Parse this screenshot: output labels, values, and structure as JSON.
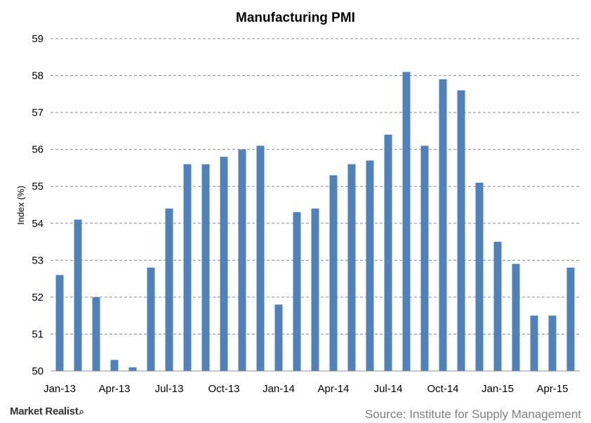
{
  "chart_data": {
    "type": "bar",
    "title": "Manufacturing  PMI",
    "ylabel": "Index (%)",
    "xlabel": "",
    "ylim": [
      50,
      59
    ],
    "yticks": [
      50,
      51,
      52,
      53,
      54,
      55,
      56,
      57,
      58,
      59
    ],
    "grid": true,
    "color": "#4F81BD",
    "categories": [
      "Jan-13",
      "Feb-13",
      "Mar-13",
      "Apr-13",
      "May-13",
      "Jun-13",
      "Jul-13",
      "Aug-13",
      "Sep-13",
      "Oct-13",
      "Nov-13",
      "Dec-13",
      "Jan-14",
      "Feb-14",
      "Mar-14",
      "Apr-14",
      "May-14",
      "Jun-14",
      "Jul-14",
      "Aug-14",
      "Sep-14",
      "Oct-14",
      "Nov-14",
      "Dec-14",
      "Jan-15",
      "Feb-15",
      "Mar-15",
      "Apr-15",
      "May-15"
    ],
    "values": [
      52.6,
      54.1,
      52.0,
      50.3,
      50.1,
      52.8,
      54.4,
      55.6,
      55.6,
      55.8,
      56.0,
      56.1,
      51.8,
      54.3,
      54.4,
      55.3,
      55.6,
      55.7,
      56.4,
      58.1,
      56.1,
      57.9,
      57.6,
      55.1,
      53.5,
      52.9,
      51.5,
      51.5,
      52.8
    ],
    "xtick_labels": [
      "Jan-13",
      "Apr-13",
      "Jul-13",
      "Oct-13",
      "Jan-14",
      "Apr-14",
      "Jul-14",
      "Oct-14",
      "Jan-15",
      "Apr-15"
    ],
    "xtick_indices": [
      0,
      3,
      6,
      9,
      12,
      15,
      18,
      21,
      24,
      27
    ]
  },
  "footer": {
    "source": "Source: Institute for Supply Management",
    "logo": "Market Realist"
  }
}
